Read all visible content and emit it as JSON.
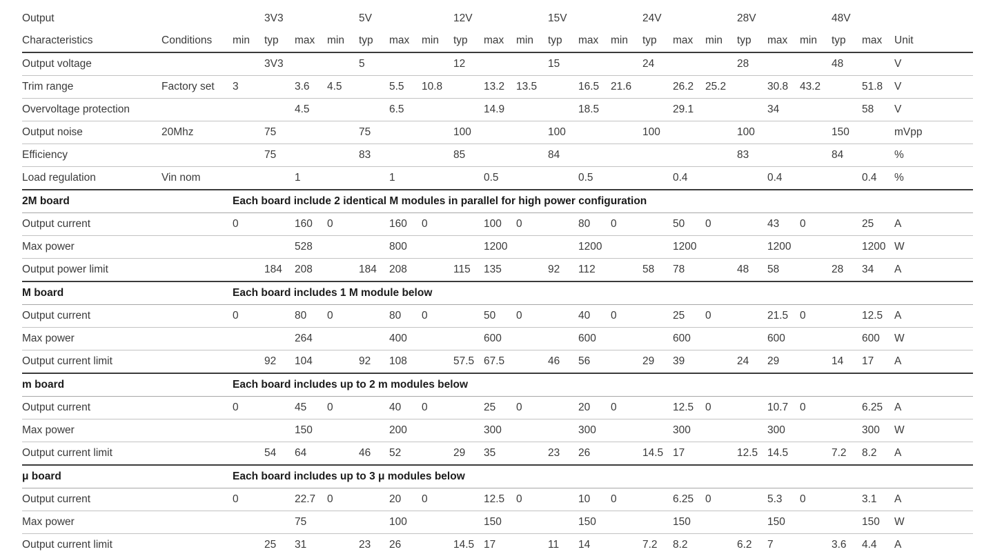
{
  "header": {
    "row1_label": "Output",
    "voltages": [
      "3V3",
      "5V",
      "12V",
      "15V",
      "24V",
      "28V",
      "48V"
    ],
    "row2": {
      "characteristics": "Characteristics",
      "conditions": "Conditions",
      "min": "min",
      "typ": "typ",
      "max": "max",
      "unit": "Unit"
    }
  },
  "rows": [
    {
      "type": "data",
      "label": "Output voltage",
      "cond": "",
      "cells": [
        "",
        "3V3",
        "",
        "",
        "5",
        "",
        "",
        "12",
        "",
        "",
        "15",
        "",
        "",
        "24",
        "",
        "",
        "28",
        "",
        "",
        "48",
        ""
      ],
      "unit": "V"
    },
    {
      "type": "data",
      "label": "Trim range",
      "cond": "Factory set",
      "cells": [
        "3",
        "",
        "3.6",
        "4.5",
        "",
        "5.5",
        "10.8",
        "",
        "13.2",
        "13.5",
        "",
        "16.5",
        "21.6",
        "",
        "26.2",
        "25.2",
        "",
        "30.8",
        "43.2",
        "",
        "51.8"
      ],
      "unit": "V"
    },
    {
      "type": "data",
      "label": "Overvoltage protection",
      "cond": "",
      "cells": [
        "",
        "",
        "4.5",
        "",
        "",
        "6.5",
        "",
        "",
        "14.9",
        "",
        "",
        "18.5",
        "",
        "",
        "29.1",
        "",
        "",
        "34",
        "",
        "",
        "58"
      ],
      "unit": "V"
    },
    {
      "type": "data",
      "label": "Output noise",
      "cond": "20Mhz",
      "cells": [
        "",
        "75",
        "",
        "",
        "75",
        "",
        "",
        "100",
        "",
        "",
        "100",
        "",
        "",
        "100",
        "",
        "",
        "100",
        "",
        "",
        "150",
        ""
      ],
      "unit": "mVpp"
    },
    {
      "type": "data",
      "label": "Efficiency",
      "cond": "",
      "cells": [
        "",
        "75",
        "",
        "",
        "83",
        "",
        "",
        "85",
        "",
        "",
        "84",
        "",
        "",
        "",
        "",
        "",
        "83",
        "",
        "",
        "84",
        ""
      ],
      "unit": "%"
    },
    {
      "type": "data",
      "label": "Load regulation",
      "cond": "Vin nom",
      "cells": [
        "",
        "",
        "1",
        "",
        "",
        "1",
        "",
        "",
        "0.5",
        "",
        "",
        "0.5",
        "",
        "",
        "0.4",
        "",
        "",
        "0.4",
        "",
        "",
        "0.4"
      ],
      "unit": "%"
    },
    {
      "type": "section",
      "label": "2M board",
      "desc": "Each board include 2 identical M modules in parallel for high power configuration"
    },
    {
      "type": "data",
      "label": "Output current",
      "cond": "",
      "cells": [
        "0",
        "",
        "160",
        "0",
        "",
        "160",
        "0",
        "",
        "100",
        "0",
        "",
        "80",
        "0",
        "",
        "50",
        "0",
        "",
        "43",
        "0",
        "",
        "25"
      ],
      "unit": "A"
    },
    {
      "type": "data",
      "label": "Max power",
      "cond": "",
      "cells": [
        "",
        "",
        "528",
        "",
        "",
        "800",
        "",
        "",
        "1200",
        "",
        "",
        "1200",
        "",
        "",
        "1200",
        "",
        "",
        "1200",
        "",
        "",
        "1200"
      ],
      "unit": "W"
    },
    {
      "type": "data",
      "label": "Output power limit",
      "cond": "",
      "cells": [
        "",
        "184",
        "208",
        "",
        "184",
        "208",
        "",
        "115",
        "135",
        "",
        "92",
        "112",
        "",
        "58",
        "78",
        "",
        "48",
        "58",
        "",
        "28",
        "34"
      ],
      "unit": "A"
    },
    {
      "type": "section",
      "label": "M board",
      "desc": "Each board includes 1 M module below"
    },
    {
      "type": "data",
      "label": "Output current",
      "cond": "",
      "cells": [
        "0",
        "",
        "80",
        "0",
        "",
        "80",
        "0",
        "",
        "50",
        "0",
        "",
        "40",
        "0",
        "",
        "25",
        "0",
        "",
        "21.5",
        "0",
        "",
        "12.5"
      ],
      "unit": "A"
    },
    {
      "type": "data",
      "label": "Max power",
      "cond": "",
      "cells": [
        "",
        "",
        "264",
        "",
        "",
        "400",
        "",
        "",
        "600",
        "",
        "",
        "600",
        "",
        "",
        "600",
        "",
        "",
        "600",
        "",
        "",
        "600"
      ],
      "unit": "W"
    },
    {
      "type": "data",
      "label": "Output current limit",
      "cond": "",
      "cells": [
        "",
        "92",
        "104",
        "",
        "92",
        "108",
        "",
        "57.5",
        "67.5",
        "",
        "46",
        "56",
        "",
        "29",
        "39",
        "",
        "24",
        "29",
        "",
        "14",
        "17"
      ],
      "unit": "A"
    },
    {
      "type": "section",
      "label": "m board",
      "desc": "Each board includes up to 2 m modules below"
    },
    {
      "type": "data",
      "label": "Output current",
      "cond": "",
      "cells": [
        "0",
        "",
        "45",
        "0",
        "",
        "40",
        "0",
        "",
        "25",
        "0",
        "",
        "20",
        "0",
        "",
        "12.5",
        "0",
        "",
        "10.7",
        "0",
        "",
        "6.25"
      ],
      "unit": "A"
    },
    {
      "type": "data",
      "label": "Max power",
      "cond": "",
      "cells": [
        "",
        "",
        "150",
        "",
        "",
        "200",
        "",
        "",
        "300",
        "",
        "",
        "300",
        "",
        "",
        "300",
        "",
        "",
        "300",
        "",
        "",
        "300"
      ],
      "unit": "W"
    },
    {
      "type": "data",
      "label": "Output current limit",
      "cond": "",
      "cells": [
        "",
        "54",
        "64",
        "",
        "46",
        "52",
        "",
        "29",
        "35",
        "",
        "23",
        "26",
        "",
        "14.5",
        "17",
        "",
        "12.5",
        "14.5",
        "",
        "7.2",
        "8.2"
      ],
      "unit": "A"
    },
    {
      "type": "section",
      "label": "μ board",
      "desc": "Each board includes up to 3 μ modules below"
    },
    {
      "type": "data",
      "label": "Output current",
      "cond": "",
      "cells": [
        "0",
        "",
        "22.7",
        "0",
        "",
        "20",
        "0",
        "",
        "12.5",
        "0",
        "",
        "10",
        "0",
        "",
        "6.25",
        "0",
        "",
        "5.3",
        "0",
        "",
        "3.1"
      ],
      "unit": "A"
    },
    {
      "type": "data",
      "label": "Max power",
      "cond": "",
      "cells": [
        "",
        "",
        "75",
        "",
        "",
        "100",
        "",
        "",
        "150",
        "",
        "",
        "150",
        "",
        "",
        "150",
        "",
        "",
        "150",
        "",
        "",
        "150"
      ],
      "unit": "W"
    },
    {
      "type": "data",
      "label": "Output current limit",
      "cond": "",
      "cells": [
        "",
        "25",
        "31",
        "",
        "23",
        "26",
        "",
        "14.5",
        "17",
        "",
        "11",
        "14",
        "",
        "7.2",
        "8.2",
        "",
        "6.2",
        "7",
        "",
        "3.6",
        "4.4"
      ],
      "unit": "A"
    }
  ]
}
